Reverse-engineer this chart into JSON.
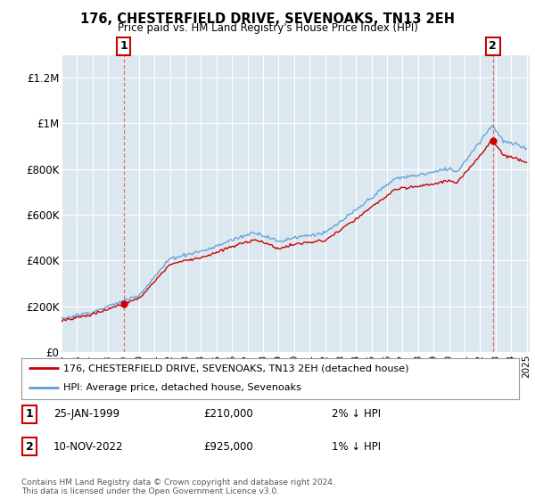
{
  "title": "176, CHESTERFIELD DRIVE, SEVENOAKS, TN13 2EH",
  "subtitle": "Price paid vs. HM Land Registry's House Price Index (HPI)",
  "ylim": [
    0,
    1300000
  ],
  "yticks": [
    0,
    200000,
    400000,
    600000,
    800000,
    1000000,
    1200000
  ],
  "ytick_labels": [
    "£0",
    "£200K",
    "£400K",
    "£600K",
    "£800K",
    "£1M",
    "£1.2M"
  ],
  "sale1_date": "25-JAN-1999",
  "sale1_price": 210000,
  "sale1_label": "2% ↓ HPI",
  "sale2_date": "10-NOV-2022",
  "sale2_price": 925000,
  "sale2_label": "1% ↓ HPI",
  "legend_line1": "176, CHESTERFIELD DRIVE, SEVENOAKS, TN13 2EH (detached house)",
  "legend_line2": "HPI: Average price, detached house, Sevenoaks",
  "footer1": "Contains HM Land Registry data © Crown copyright and database right 2024.",
  "footer2": "This data is licensed under the Open Government Licence v3.0.",
  "hpi_color": "#5b9bd5",
  "price_color": "#cc0000",
  "dashed_color": "#e07070",
  "plot_bg_color": "#dce8f0",
  "background_color": "#ffffff",
  "grid_color": "#ffffff"
}
